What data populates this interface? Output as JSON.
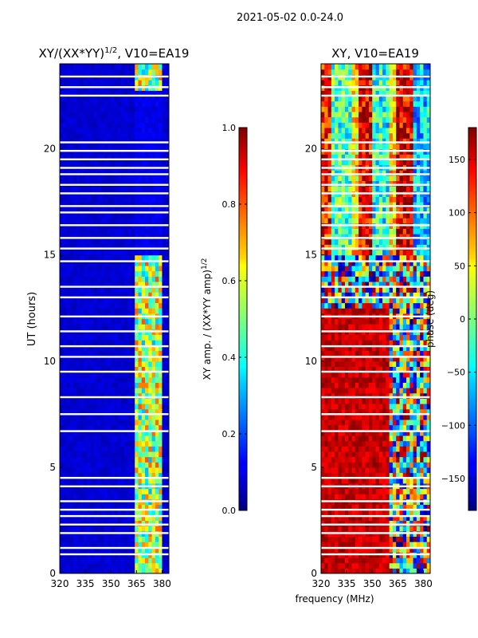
{
  "figure_title": "2021-05-02 0.0-24.0",
  "chart_data": [
    {
      "type": "heatmap",
      "title_main": "XY/(XX*YY)",
      "title_sup": "1/2",
      "title_tail": ", V10=EA19",
      "ylabel": "UT (hours)",
      "xlim": [
        320,
        384
      ],
      "ylim": [
        0,
        24
      ],
      "xticks": [
        320,
        335,
        350,
        365,
        380
      ],
      "yticks": [
        0,
        5,
        10,
        15,
        20
      ],
      "quantity": "normalized XY amplitude",
      "value_range": [
        0.0,
        1.0
      ],
      "dominant_value": 0.08,
      "bright_band_mhz": [
        364,
        380
      ],
      "bright_band_value_range": [
        0.3,
        0.8
      ],
      "clear_sky_hours": [
        15,
        24
      ],
      "gap_hours": [
        0.9,
        1.2,
        1.9,
        2.3,
        2.7,
        3.0,
        3.4,
        4.1,
        4.5,
        6.7,
        7.5,
        8.3,
        9.5,
        10.2,
        10.7,
        11.4,
        12.1,
        13.0,
        13.5,
        14.7,
        15.3,
        15.8,
        16.4,
        17.0,
        17.3,
        17.9,
        18.3,
        18.8,
        19.1,
        19.5,
        19.9,
        20.3,
        22.5,
        22.9,
        23.4
      ],
      "colorbar": {
        "label_main": "XY amp. / (XX*YY amp)",
        "label_sup": "1/2",
        "range": [
          0.0,
          1.0
        ],
        "ticks": [
          "0.0",
          "0.2",
          "0.4",
          "0.6",
          "0.8",
          "1.0"
        ],
        "colormap": "jet"
      }
    },
    {
      "type": "heatmap",
      "title": "XY, V10=EA19",
      "xlabel": "frequency (MHz)",
      "xlim": [
        320,
        384
      ],
      "ylim": [
        0,
        24
      ],
      "xticks": [
        320,
        335,
        350,
        365,
        380
      ],
      "yticks": [
        0,
        5,
        10,
        15,
        20
      ],
      "quantity": "XY phase",
      "value_range": [
        -180,
        180
      ],
      "clear_sky_hours": [
        15,
        24
      ],
      "clear_sky_stripes_mhz": [
        [
          320,
          327,
          130
        ],
        [
          327,
          339,
          -20
        ],
        [
          339,
          342,
          60
        ],
        [
          342,
          350,
          150
        ],
        [
          350,
          361,
          -35
        ],
        [
          361,
          365,
          60
        ],
        [
          365,
          374,
          150
        ],
        [
          374,
          384,
          -60
        ]
      ],
      "night_phase_deg": 155,
      "colorbar": {
        "label": "phase (deg)",
        "range": [
          -180,
          180
        ],
        "ticks": [
          "150",
          "100",
          "50",
          "0",
          "−50",
          "−100",
          "−150"
        ],
        "colormap": "jet"
      }
    }
  ]
}
